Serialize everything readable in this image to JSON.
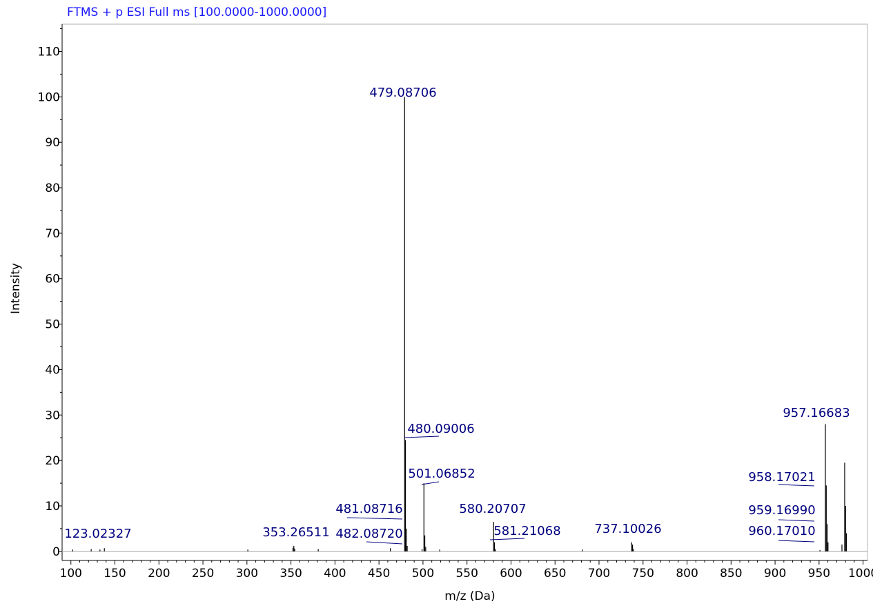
{
  "colors": {
    "title": "#1a1aff",
    "peak_label": "#000080",
    "axis": "#000000",
    "frame": "#b0b0b0",
    "baseline": "#a0a0a0"
  },
  "chart_data": {
    "type": "bar",
    "title": "FTMS + p ESI Full ms [100.0000-1000.0000]",
    "xlabel": "m/z (Da)",
    "ylabel": "Intensity",
    "xlim": [
      90,
      1005
    ],
    "ylim": [
      -2,
      116
    ],
    "xticks": [
      100,
      150,
      200,
      250,
      300,
      350,
      400,
      450,
      500,
      550,
      600,
      650,
      700,
      750,
      800,
      850,
      900,
      950,
      1000
    ],
    "yticks": [
      0,
      10,
      20,
      30,
      40,
      50,
      60,
      70,
      80,
      90,
      100,
      110
    ],
    "grid": false,
    "labeled_peaks": [
      {
        "mz": 479.08706,
        "intensity": 100,
        "label": "479.08706"
      },
      {
        "mz": 480.09006,
        "intensity": 24.5,
        "label": "480.09006"
      },
      {
        "mz": 501.06852,
        "intensity": 15.0,
        "label": "501.06852"
      },
      {
        "mz": 481.08716,
        "intensity": 5.0,
        "label": "481.08716"
      },
      {
        "mz": 482.0872,
        "intensity": 1.2,
        "label": "482.08720"
      },
      {
        "mz": 580.20707,
        "intensity": 6.5,
        "label": "580.20707"
      },
      {
        "mz": 581.21068,
        "intensity": 2.0,
        "label": "581.21068"
      },
      {
        "mz": 737.10026,
        "intensity": 2.0,
        "label": "737.10026"
      },
      {
        "mz": 957.16683,
        "intensity": 28.0,
        "label": "957.16683"
      },
      {
        "mz": 958.17021,
        "intensity": 14.5,
        "label": "958.17021"
      },
      {
        "mz": 959.1699,
        "intensity": 6.0,
        "label": "959.16990"
      },
      {
        "mz": 960.1701,
        "intensity": 2.0,
        "label": "960.17010"
      },
      {
        "mz": 123.02327,
        "intensity": 0.5,
        "label": "123.02327"
      },
      {
        "mz": 353.26511,
        "intensity": 1.2,
        "label": "353.26511"
      }
    ],
    "unlabeled_peaks": [
      {
        "mz": 979.1,
        "intensity": 19.5
      },
      {
        "mz": 980.1,
        "intensity": 10.0
      },
      {
        "mz": 981.1,
        "intensity": 4.0
      },
      {
        "mz": 976.0,
        "intensity": 1.5
      },
      {
        "mz": 502.07,
        "intensity": 3.5
      },
      {
        "mz": 503.07,
        "intensity": 1.0
      },
      {
        "mz": 499.0,
        "intensity": 0.5
      },
      {
        "mz": 582.2,
        "intensity": 0.5
      },
      {
        "mz": 738.1,
        "intensity": 1.5
      },
      {
        "mz": 739.1,
        "intensity": 0.5
      },
      {
        "mz": 463.0,
        "intensity": 0.7
      },
      {
        "mz": 352.26,
        "intensity": 0.8
      },
      {
        "mz": 354.26,
        "intensity": 0.6
      },
      {
        "mz": 138.0,
        "intensity": 0.7
      },
      {
        "mz": 133.0,
        "intensity": 0.4
      },
      {
        "mz": 102.0,
        "intensity": 0.4
      },
      {
        "mz": 301.0,
        "intensity": 0.4
      },
      {
        "mz": 381.0,
        "intensity": 0.5
      },
      {
        "mz": 519.0,
        "intensity": 0.4
      },
      {
        "mz": 681.0,
        "intensity": 0.4
      },
      {
        "mz": 951.0,
        "intensity": 0.3
      }
    ]
  }
}
